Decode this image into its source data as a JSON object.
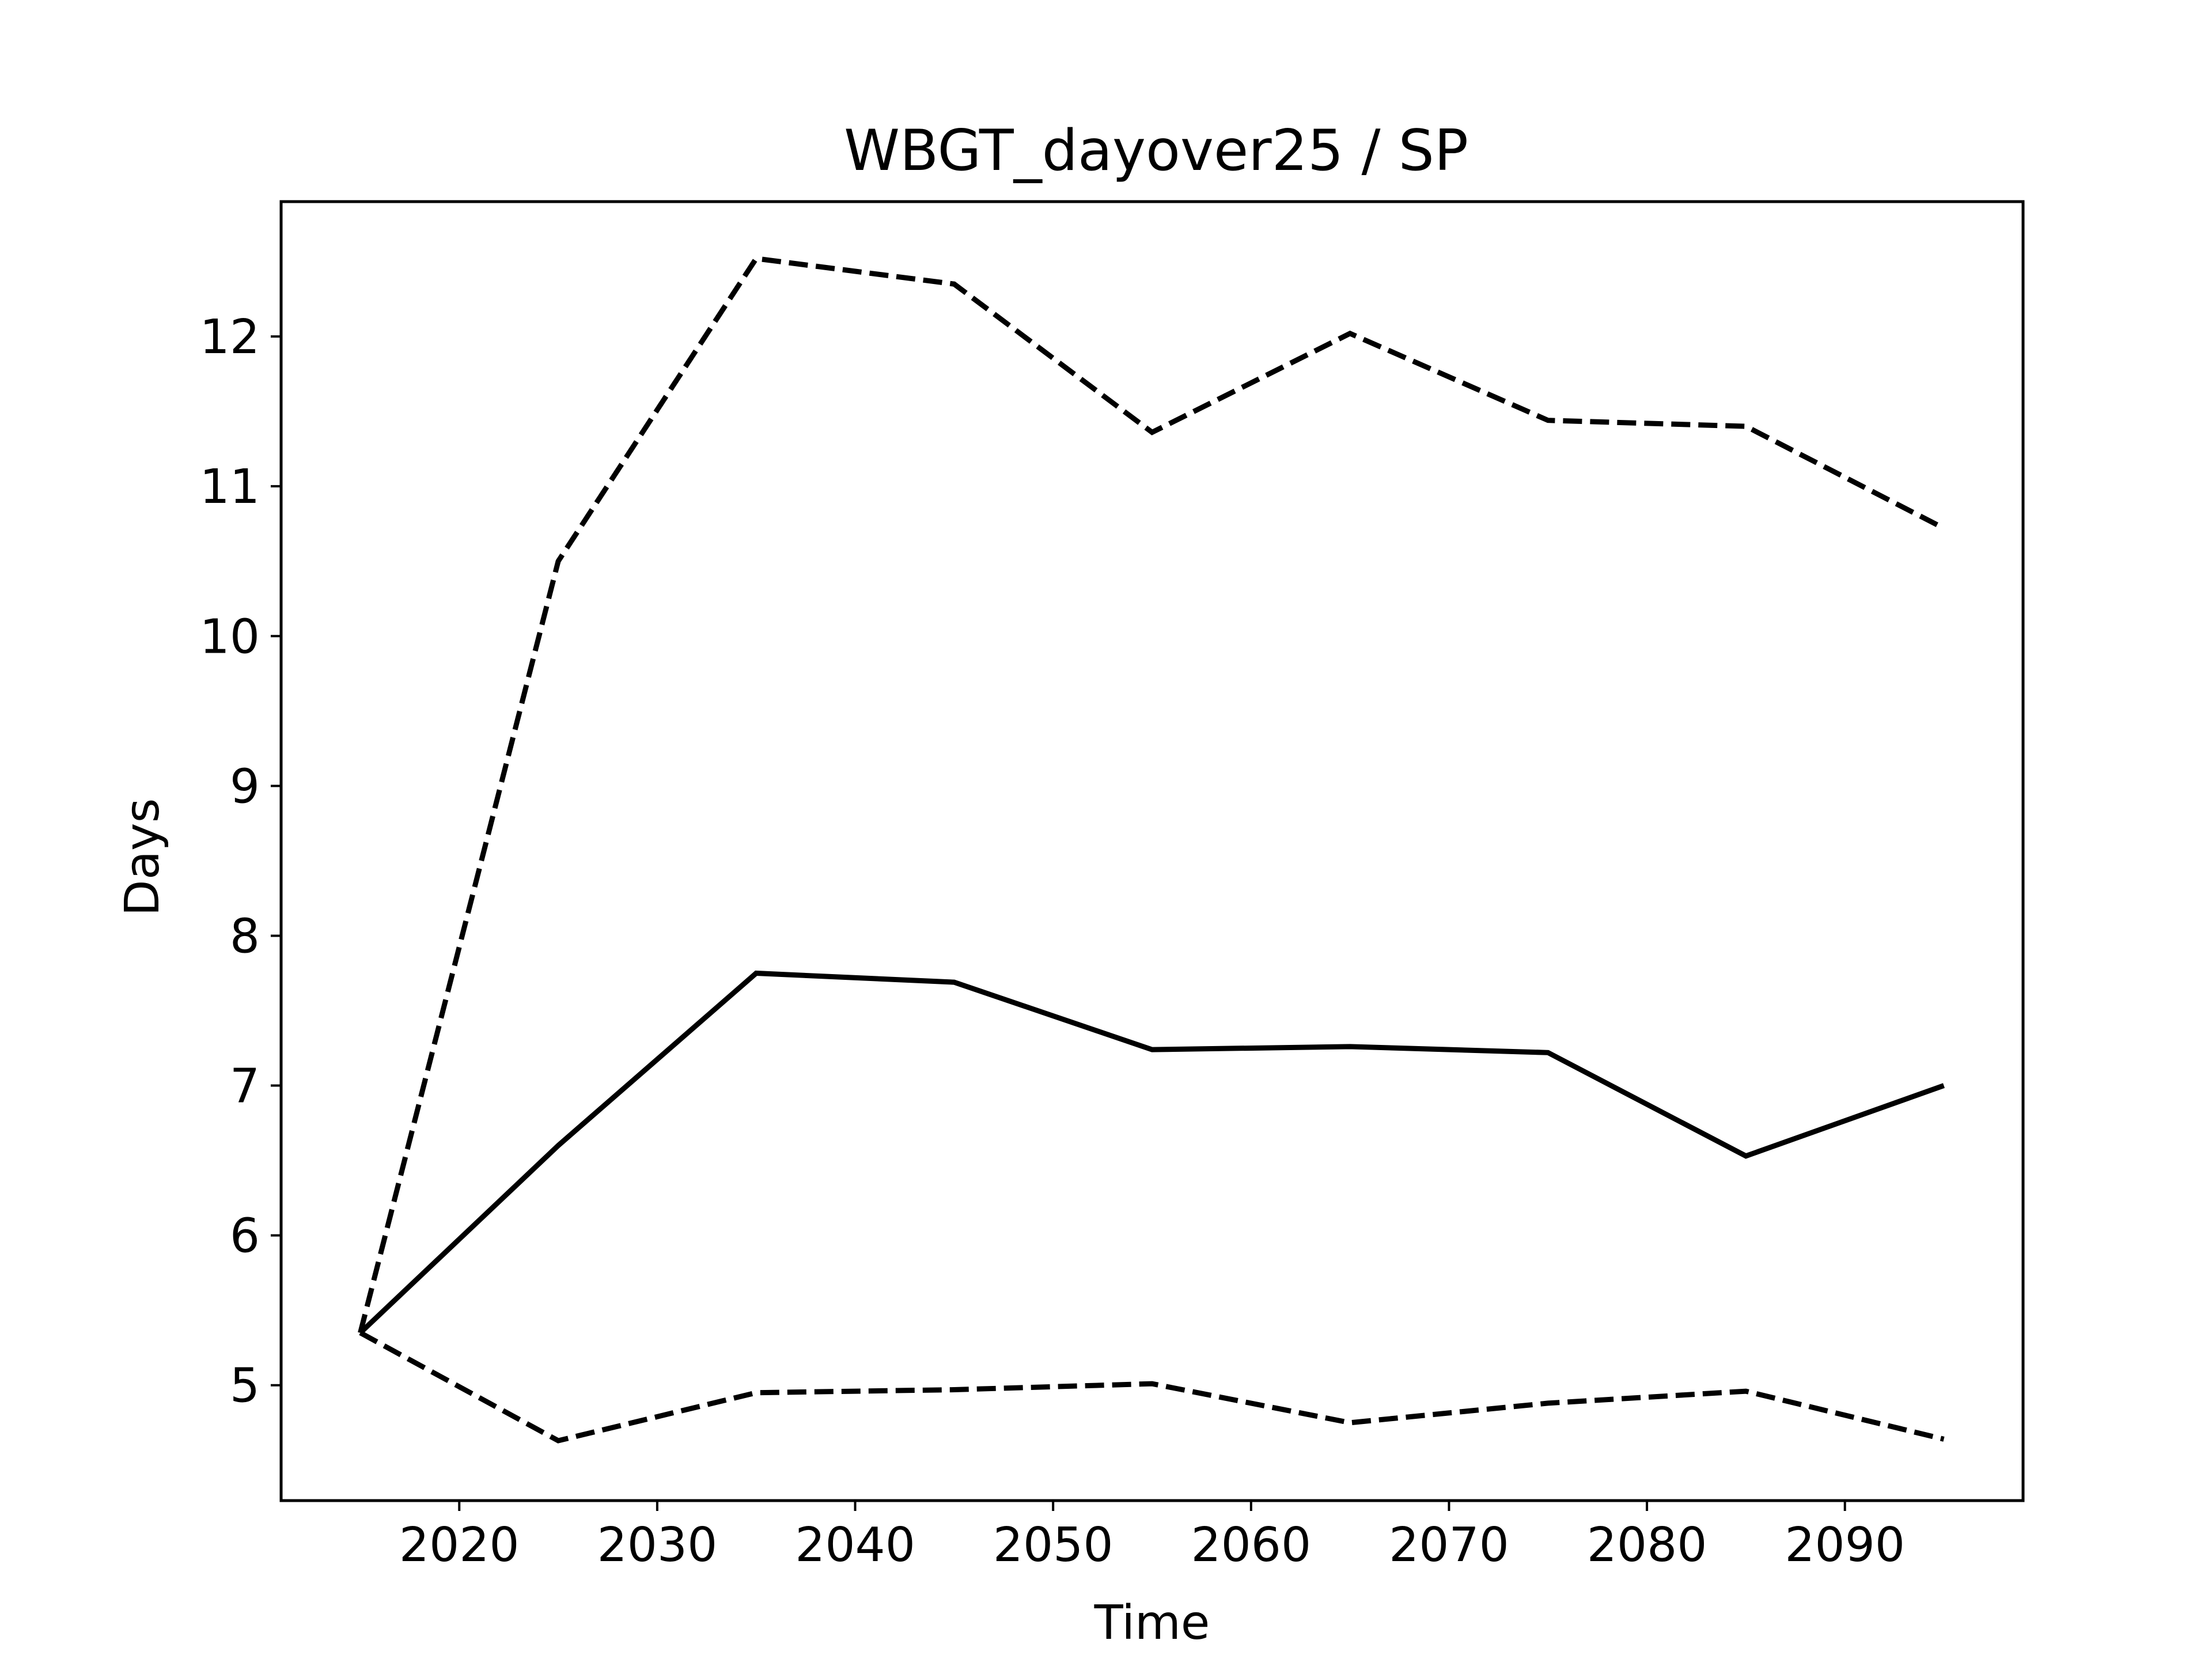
{
  "chart_data": {
    "type": "line",
    "title": "WBGT_dayover25 / SP",
    "xlabel": "Time",
    "ylabel": "Days",
    "xlim": [
      2011,
      2099
    ],
    "ylim": [
      4.23,
      12.9
    ],
    "x_ticks": [
      2020,
      2030,
      2040,
      2050,
      2060,
      2070,
      2080,
      2090
    ],
    "y_ticks": [
      5,
      6,
      7,
      8,
      9,
      10,
      11,
      12
    ],
    "grid": false,
    "legend": "none",
    "x": [
      2015,
      2025,
      2035,
      2045,
      2055,
      2065,
      2075,
      2085,
      2095
    ],
    "series": [
      {
        "style": "solid",
        "color": "#000000",
        "values": [
          5.35,
          6.6,
          7.75,
          7.69,
          7.24,
          7.26,
          7.22,
          6.53,
          7.0
        ]
      },
      {
        "style": "dashed",
        "color": "#000000",
        "values": [
          5.35,
          10.5,
          12.52,
          12.35,
          11.36,
          12.02,
          11.44,
          11.4,
          10.72
        ]
      },
      {
        "style": "dashed",
        "color": "#000000",
        "values": [
          5.35,
          4.63,
          4.95,
          4.97,
          5.01,
          4.75,
          4.88,
          4.96,
          4.64
        ]
      }
    ]
  }
}
